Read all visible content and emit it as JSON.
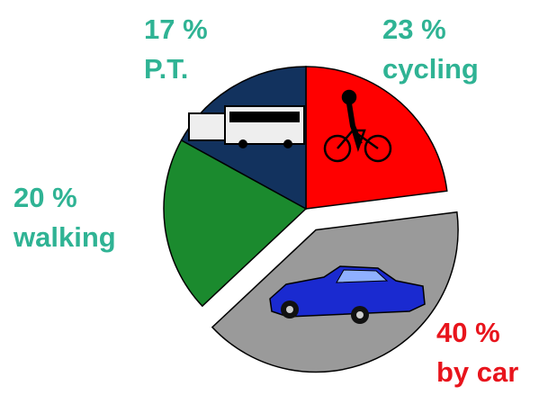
{
  "chart_data": {
    "type": "pie",
    "categories": [
      "cycling",
      "by car",
      "walking",
      "P.T."
    ],
    "values": [
      23,
      40,
      20,
      17
    ],
    "value_labels": [
      "23 %",
      "40 %",
      "20 %",
      "17 %"
    ],
    "colors": [
      "#ff0000",
      "#9a9a9a",
      "#1b8a2e",
      "#12325e"
    ],
    "label_colors": [
      "#2fb394",
      "#e8141c",
      "#2fb394",
      "#2fb394"
    ],
    "exploded": [
      false,
      true,
      false,
      false
    ]
  }
}
